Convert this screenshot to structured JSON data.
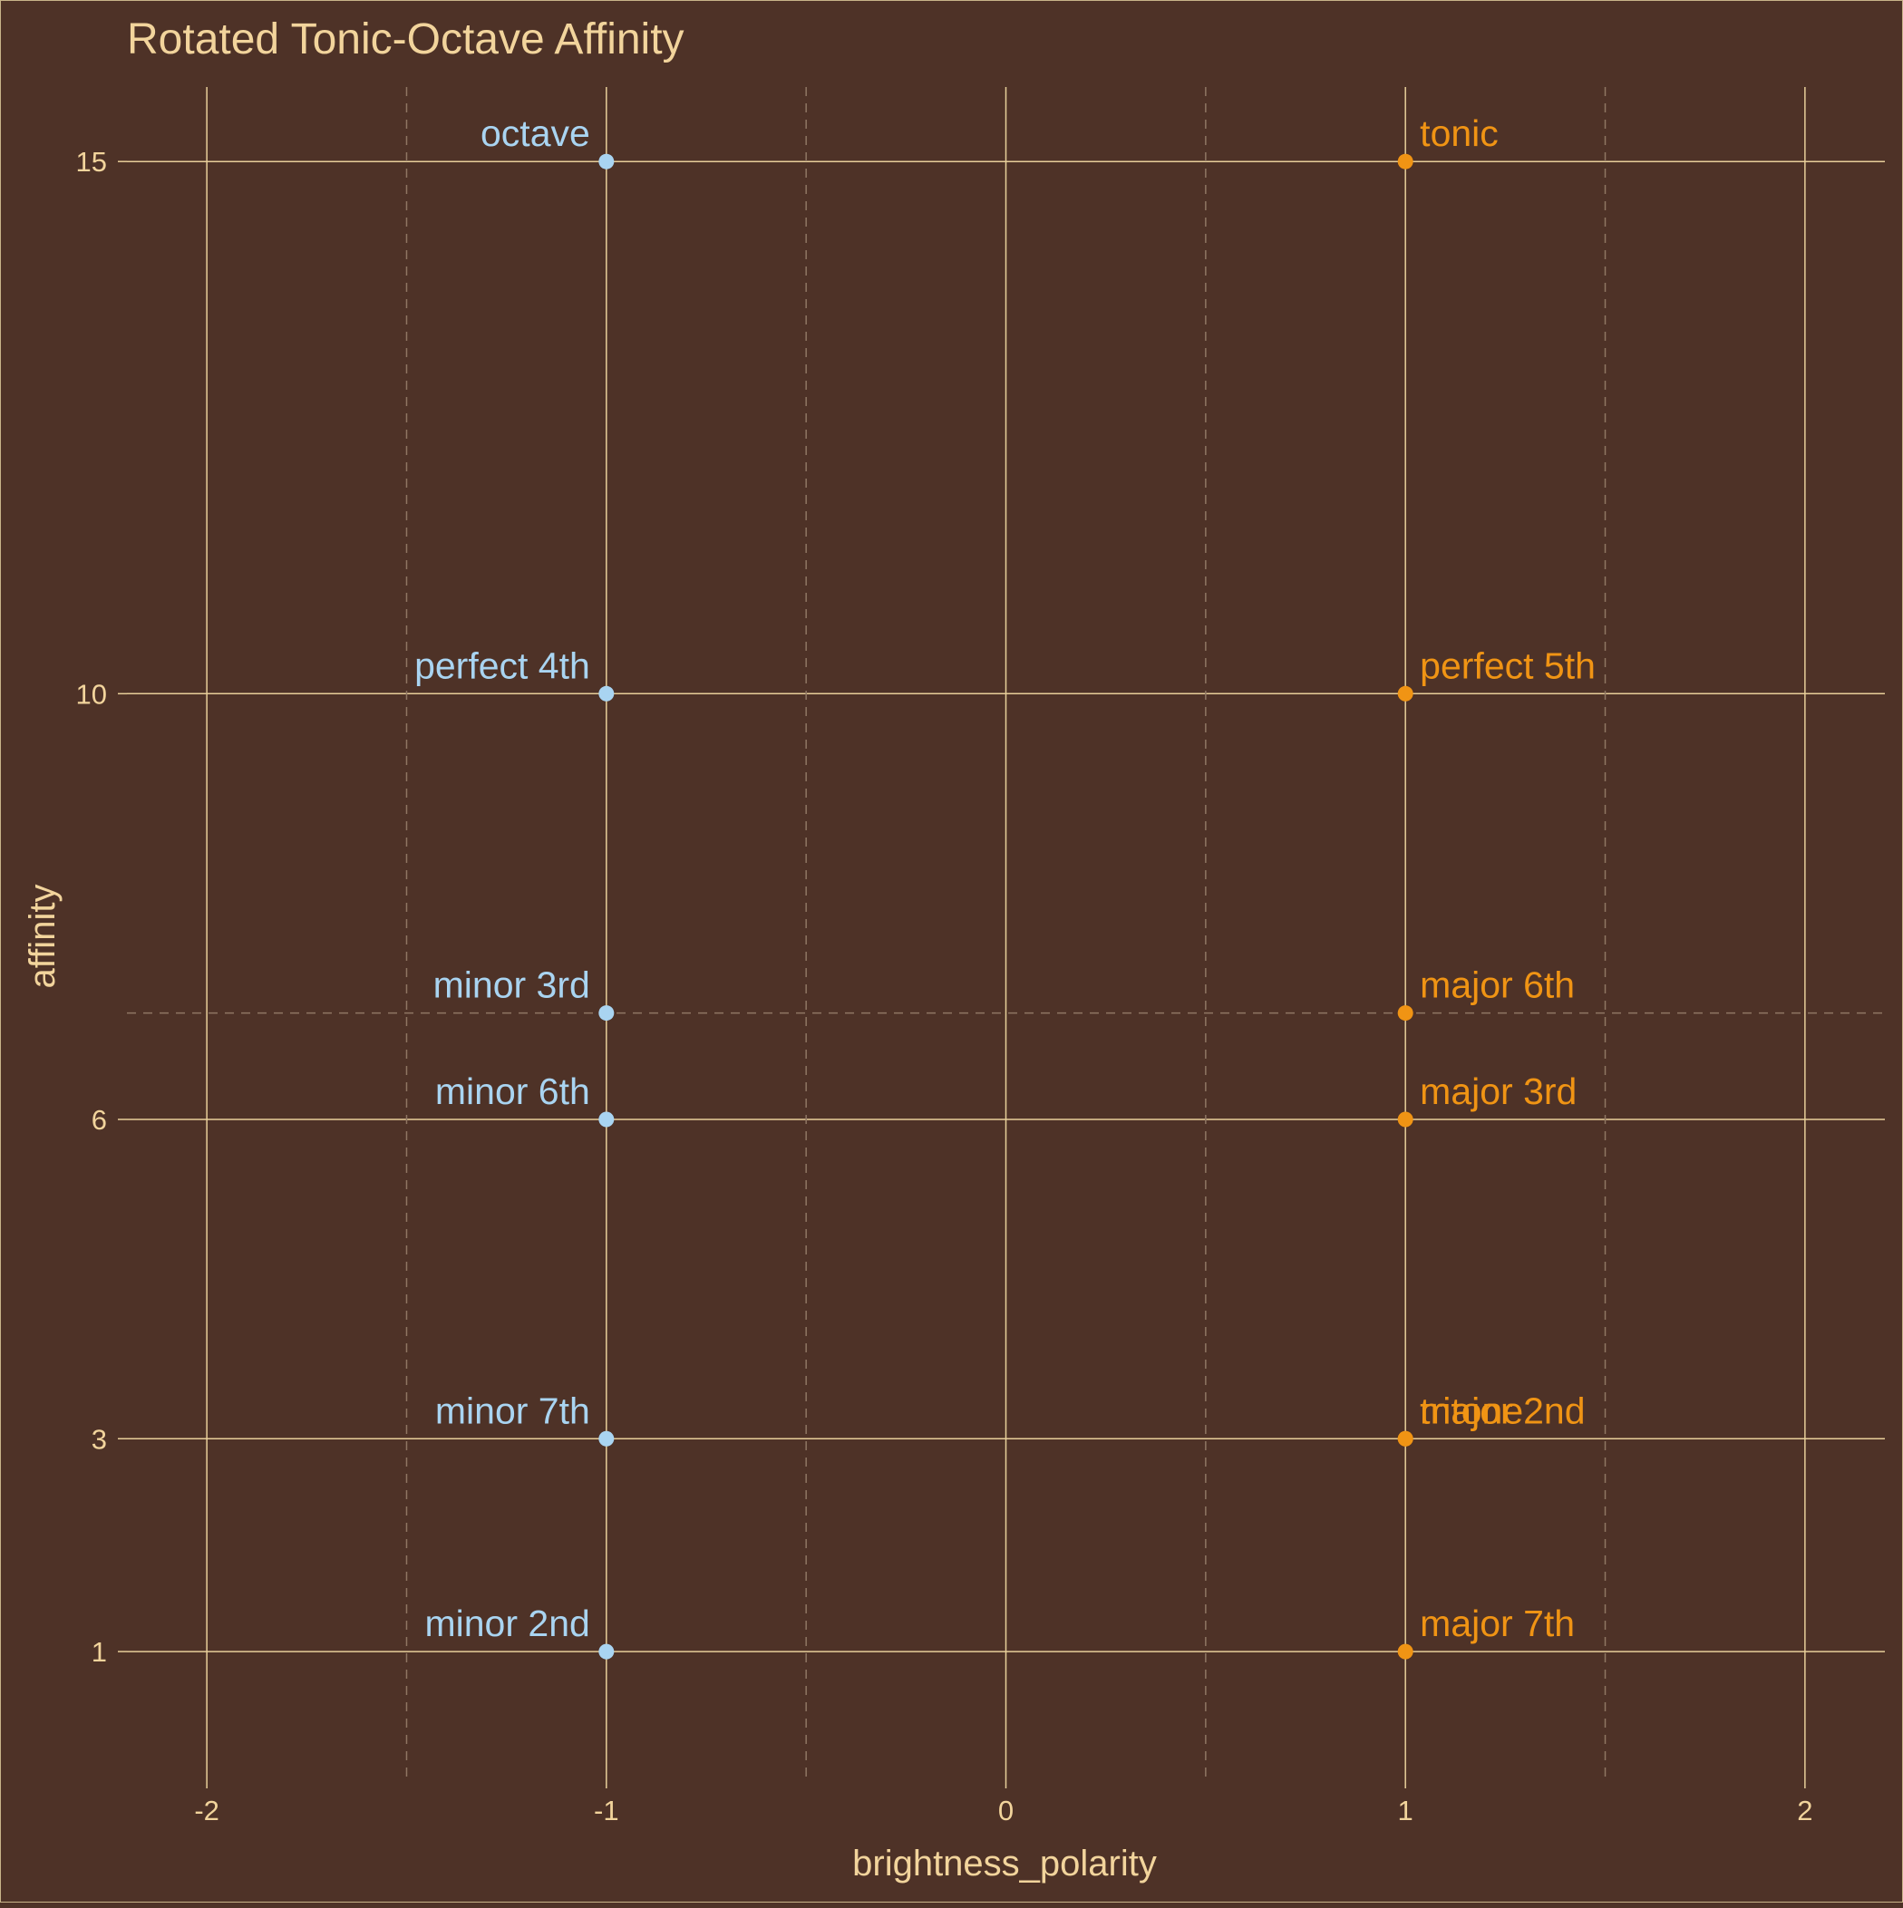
{
  "chart_data": {
    "type": "scatter",
    "title": "Rotated Tonic-Octave Affinity",
    "xlabel": "brightness_polarity",
    "ylabel": "affinity",
    "xlim": [
      -2.2,
      2.2
    ],
    "ylim": [
      -0.2,
      15.7
    ],
    "x_ticks": [
      -2,
      -1,
      0,
      1,
      2
    ],
    "x_tick_labels": [
      "-2",
      "-1",
      "0",
      "1",
      "2"
    ],
    "y_ticks": [
      1,
      3,
      6,
      10,
      15
    ],
    "y_tick_labels": [
      "1",
      "3",
      "6",
      "10",
      "15"
    ],
    "reference_lines": {
      "vertical_dashed": [
        -1.5,
        -0.5,
        0.5,
        1.5
      ],
      "horizontal_dashed": [
        7
      ]
    },
    "grid": true,
    "legend": "none",
    "colors": {
      "background": "#4e3227",
      "grid": "#e8cf9a",
      "dashed": "#8f7663",
      "text": "#f2d49c",
      "negative": "#a9d4f1",
      "positive": "#f09414"
    },
    "points": [
      {
        "label": "octave",
        "x": -1,
        "y": 15
      },
      {
        "label": "tonic",
        "x": 1,
        "y": 15
      },
      {
        "label": "perfect 4th",
        "x": -1,
        "y": 10
      },
      {
        "label": "perfect 5th",
        "x": 1,
        "y": 10
      },
      {
        "label": "minor 3rd",
        "x": -1,
        "y": 7
      },
      {
        "label": "major 6th",
        "x": 1,
        "y": 7
      },
      {
        "label": "minor 6th",
        "x": -1,
        "y": 6
      },
      {
        "label": "major 3rd",
        "x": 1,
        "y": 6
      },
      {
        "label": "minor 7th",
        "x": -1,
        "y": 3
      },
      {
        "label": "tritone",
        "x": 1,
        "y": 3
      },
      {
        "label": "major 2nd",
        "x": 1,
        "y": 3
      },
      {
        "label": "minor 2nd",
        "x": -1,
        "y": 1
      },
      {
        "label": "major 7th",
        "x": 1,
        "y": 1
      }
    ]
  }
}
